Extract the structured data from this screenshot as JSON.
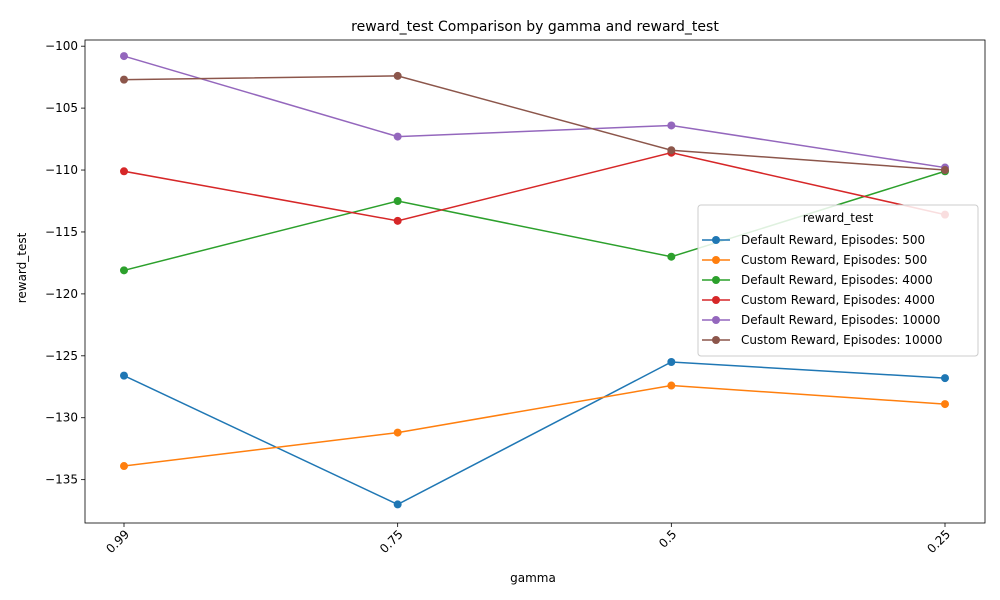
{
  "chart_data": {
    "type": "line",
    "title": "reward_test Comparison by gamma and reward_test",
    "xlabel": "gamma",
    "ylabel": "reward_test",
    "categories": [
      "0.99",
      "0.75",
      "0.5",
      "0.25"
    ],
    "ylim": [
      -138.5,
      -99.5
    ],
    "yticks": [
      -100,
      -105,
      -110,
      -115,
      -120,
      -125,
      -130,
      -135
    ],
    "ytick_labels": [
      "−100",
      "−105",
      "−110",
      "−115",
      "−120",
      "−125",
      "−130",
      "−135"
    ],
    "grid": false,
    "legend": {
      "title": "reward_test",
      "placement": "center-right"
    },
    "series": [
      {
        "name": "Default Reward, Episodes: 500",
        "color": "#1f77b4",
        "values": [
          -126.6,
          -137.0,
          -125.5,
          -126.8
        ]
      },
      {
        "name": "Custom Reward, Episodes: 500",
        "color": "#ff7f0e",
        "values": [
          -133.9,
          -131.2,
          -127.4,
          -128.9
        ]
      },
      {
        "name": "Default Reward, Episodes: 4000",
        "color": "#2ca02c",
        "values": [
          -118.1,
          -112.5,
          -117.0,
          -110.1
        ]
      },
      {
        "name": "Custom Reward, Episodes: 4000",
        "color": "#d62728",
        "values": [
          -110.1,
          -114.1,
          -108.6,
          -113.6
        ]
      },
      {
        "name": "Default Reward, Episodes: 10000",
        "color": "#9467bd",
        "values": [
          -100.8,
          -107.3,
          -106.4,
          -109.8
        ]
      },
      {
        "name": "Custom Reward, Episodes: 10000",
        "color": "#8c564b",
        "values": [
          -102.7,
          -102.4,
          -108.4,
          -110.0
        ]
      }
    ]
  }
}
